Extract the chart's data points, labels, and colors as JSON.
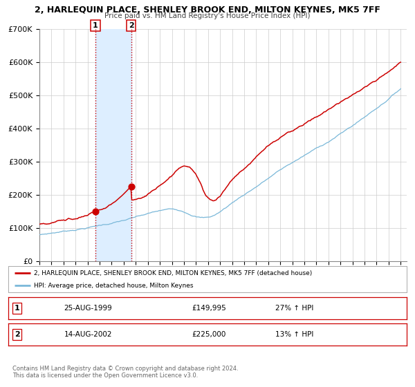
{
  "title": "2, HARLEQUIN PLACE, SHENLEY BROOK END, MILTON KEYNES, MK5 7FF",
  "subtitle": "Price paid vs. HM Land Registry's House Price Index (HPI)",
  "ylim": [
    0,
    700000
  ],
  "yticks": [
    0,
    100000,
    200000,
    300000,
    400000,
    500000,
    600000,
    700000
  ],
  "ytick_labels": [
    "£0",
    "£100K",
    "£200K",
    "£300K",
    "£400K",
    "£500K",
    "£600K",
    "£700K"
  ],
  "xmin": 1995,
  "xmax": 2025.5,
  "sale1_date_x": 1999.646,
  "sale1_price": 149995,
  "sale2_date_x": 2002.62,
  "sale2_price": 225000,
  "shade_color": "#ddeeff",
  "hpi_color": "#7ab8d9",
  "price_color": "#cc0000",
  "vline_color": "#cc0000",
  "grid_color": "#cccccc",
  "legend_entry1": "2, HARLEQUIN PLACE, SHENLEY BROOK END, MILTON KEYNES, MK5 7FF (detached house)",
  "legend_entry2": "HPI: Average price, detached house, Milton Keynes",
  "table_row1": [
    "1",
    "25-AUG-1999",
    "£149,995",
    "27% ↑ HPI"
  ],
  "table_row2": [
    "2",
    "14-AUG-2002",
    "£225,000",
    "13% ↑ HPI"
  ],
  "footer1": "Contains HM Land Registry data © Crown copyright and database right 2024.",
  "footer2": "This data is licensed under the Open Government Licence v3.0.",
  "background_color": "#ffffff"
}
